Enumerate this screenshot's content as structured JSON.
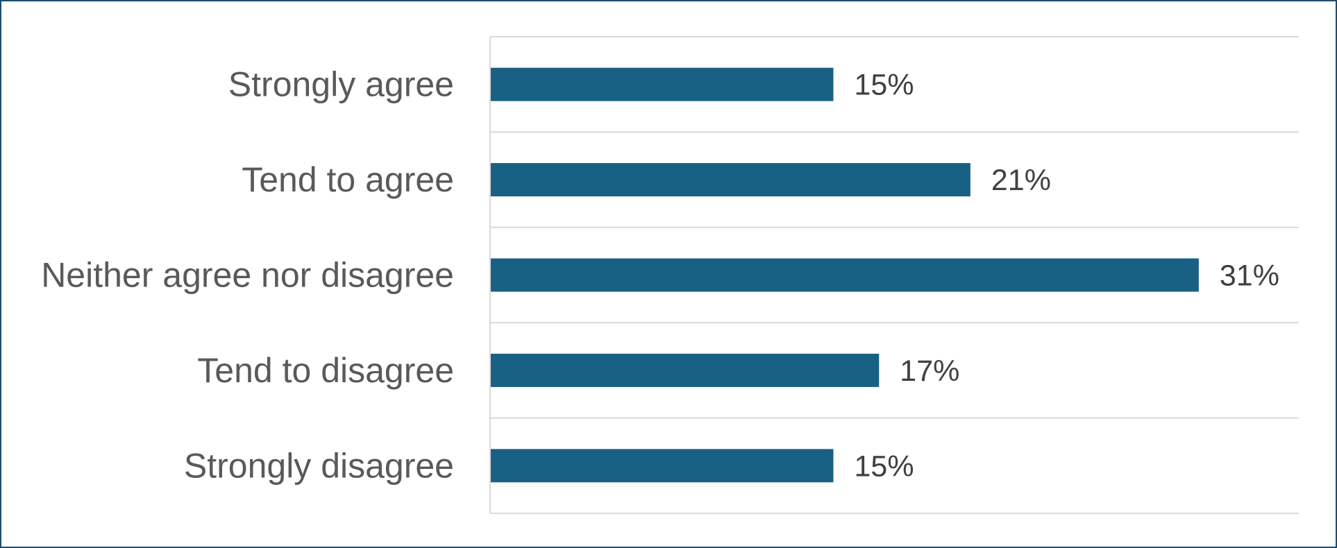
{
  "chart_data": {
    "type": "bar",
    "orientation": "horizontal",
    "categories": [
      "Strongly agree",
      "Tend to agree",
      "Neither agree nor disagree",
      "Tend to disagree",
      "Strongly disagree"
    ],
    "values": [
      15,
      21,
      31,
      17,
      15
    ],
    "value_labels": [
      "15%",
      "21%",
      "31%",
      "17%",
      "15%"
    ],
    "unit": "%",
    "xlim": [
      0,
      35
    ],
    "grid": "horizontal separators between categories",
    "legend": "none",
    "colors": {
      "bar": "#186184",
      "frame_border": "#1a4d6e",
      "grid": "#d9d9d9",
      "category_text": "#595959",
      "value_text": "#404040"
    }
  }
}
